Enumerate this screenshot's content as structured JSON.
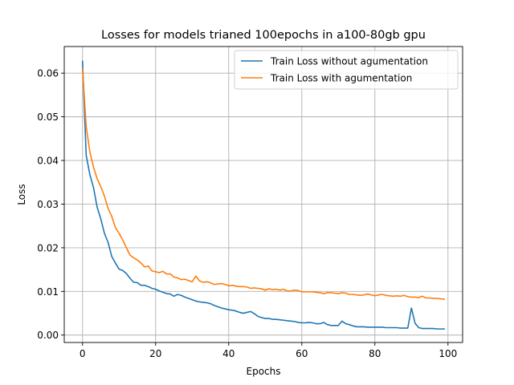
{
  "chart_data": {
    "type": "line",
    "title": "Losses for models trianed 100epochs in a100-80gb gpu",
    "xlabel": "Epochs",
    "ylabel": "Loss",
    "xlim": [
      -5,
      104
    ],
    "ylim": [
      -0.0017,
      0.0661
    ],
    "xticks": [
      0,
      20,
      40,
      60,
      80,
      100
    ],
    "yticks": [
      0.0,
      0.01,
      0.02,
      0.03,
      0.04,
      0.05,
      0.06
    ],
    "xtick_labels": [
      "0",
      "20",
      "40",
      "60",
      "80",
      "100"
    ],
    "ytick_labels": [
      "0.00",
      "0.01",
      "0.02",
      "0.03",
      "0.04",
      "0.05",
      "0.06"
    ],
    "grid": true,
    "legend_position": "top-right",
    "series": [
      {
        "name": "Train Loss without agumentation",
        "color": "#1f77b4",
        "x": [
          0,
          1,
          2,
          3,
          4,
          5,
          6,
          7,
          8,
          9,
          10,
          11,
          12,
          13,
          14,
          15,
          16,
          17,
          18,
          19,
          20,
          21,
          22,
          23,
          24,
          25,
          26,
          27,
          28,
          29,
          30,
          31,
          32,
          33,
          34,
          35,
          36,
          37,
          38,
          39,
          40,
          41,
          42,
          43,
          44,
          45,
          46,
          47,
          48,
          49,
          50,
          51,
          52,
          53,
          54,
          55,
          56,
          57,
          58,
          59,
          60,
          61,
          62,
          63,
          64,
          65,
          66,
          67,
          68,
          69,
          70,
          71,
          72,
          73,
          74,
          75,
          76,
          77,
          78,
          79,
          80,
          81,
          82,
          83,
          84,
          85,
          86,
          87,
          88,
          89,
          90,
          91,
          92,
          93,
          94,
          95,
          96,
          97,
          98,
          99
        ],
        "values": [
          0.0627,
          0.0412,
          0.0368,
          0.0338,
          0.0293,
          0.0266,
          0.0233,
          0.0212,
          0.018,
          0.0165,
          0.0151,
          0.0148,
          0.0141,
          0.013,
          0.0121,
          0.012,
          0.0114,
          0.0114,
          0.0111,
          0.0107,
          0.0105,
          0.0101,
          0.0098,
          0.0095,
          0.0094,
          0.0089,
          0.0093,
          0.0091,
          0.0087,
          0.0084,
          0.0081,
          0.0078,
          0.0076,
          0.0075,
          0.0074,
          0.0072,
          0.0068,
          0.0065,
          0.0062,
          0.006,
          0.0058,
          0.0057,
          0.0055,
          0.0052,
          0.005,
          0.0052,
          0.0054,
          0.0049,
          0.0043,
          0.004,
          0.0038,
          0.0038,
          0.0036,
          0.0036,
          0.0035,
          0.0034,
          0.0033,
          0.0032,
          0.0031,
          0.0029,
          0.0028,
          0.0028,
          0.0029,
          0.0028,
          0.0026,
          0.0026,
          0.0029,
          0.0024,
          0.0022,
          0.0022,
          0.0022,
          0.0032,
          0.0026,
          0.0024,
          0.0021,
          0.0019,
          0.0019,
          0.0019,
          0.0018,
          0.0018,
          0.0018,
          0.0018,
          0.0018,
          0.0017,
          0.0017,
          0.0017,
          0.0017,
          0.0016,
          0.0016,
          0.0016,
          0.0062,
          0.0027,
          0.0017,
          0.0015,
          0.0015,
          0.0015,
          0.0015,
          0.0014,
          0.0014,
          0.0014
        ]
      },
      {
        "name": "Train Loss with agumentation",
        "color": "#ff7f0e",
        "x": [
          0,
          1,
          2,
          3,
          4,
          5,
          6,
          7,
          8,
          9,
          10,
          11,
          12,
          13,
          14,
          15,
          16,
          17,
          18,
          19,
          20,
          21,
          22,
          23,
          24,
          25,
          26,
          27,
          28,
          29,
          30,
          31,
          32,
          33,
          34,
          35,
          36,
          37,
          38,
          39,
          40,
          41,
          42,
          43,
          44,
          45,
          46,
          47,
          48,
          49,
          50,
          51,
          52,
          53,
          54,
          55,
          56,
          57,
          58,
          59,
          60,
          61,
          62,
          63,
          64,
          65,
          66,
          67,
          68,
          69,
          70,
          71,
          72,
          73,
          74,
          75,
          76,
          77,
          78,
          79,
          80,
          81,
          82,
          83,
          84,
          85,
          86,
          87,
          88,
          89,
          90,
          91,
          92,
          93,
          94,
          95,
          96,
          97,
          98,
          99
        ],
        "values": [
          0.061,
          0.0478,
          0.042,
          0.0385,
          0.0358,
          0.034,
          0.0318,
          0.029,
          0.0272,
          0.0246,
          0.0233,
          0.0218,
          0.02,
          0.0183,
          0.0177,
          0.0172,
          0.0165,
          0.0156,
          0.0158,
          0.0147,
          0.0145,
          0.0143,
          0.0146,
          0.014,
          0.014,
          0.0133,
          0.0131,
          0.0127,
          0.0128,
          0.0125,
          0.0122,
          0.0135,
          0.0124,
          0.0121,
          0.0122,
          0.012,
          0.0116,
          0.0117,
          0.0118,
          0.0116,
          0.0113,
          0.0114,
          0.0112,
          0.0111,
          0.0111,
          0.011,
          0.0107,
          0.0108,
          0.0107,
          0.0106,
          0.0103,
          0.0106,
          0.0104,
          0.0105,
          0.0103,
          0.0105,
          0.0101,
          0.0101,
          0.0103,
          0.0102,
          0.0099,
          0.0099,
          0.0099,
          0.0099,
          0.0098,
          0.0097,
          0.0095,
          0.0097,
          0.0097,
          0.0096,
          0.0095,
          0.0097,
          0.0096,
          0.0093,
          0.0093,
          0.0092,
          0.0091,
          0.0092,
          0.0094,
          0.0092,
          0.009,
          0.0092,
          0.0093,
          0.0091,
          0.009,
          0.0089,
          0.009,
          0.0089,
          0.0091,
          0.0088,
          0.0087,
          0.0087,
          0.0086,
          0.0089,
          0.0085,
          0.0085,
          0.0084,
          0.0084,
          0.0083,
          0.0082
        ]
      }
    ]
  }
}
